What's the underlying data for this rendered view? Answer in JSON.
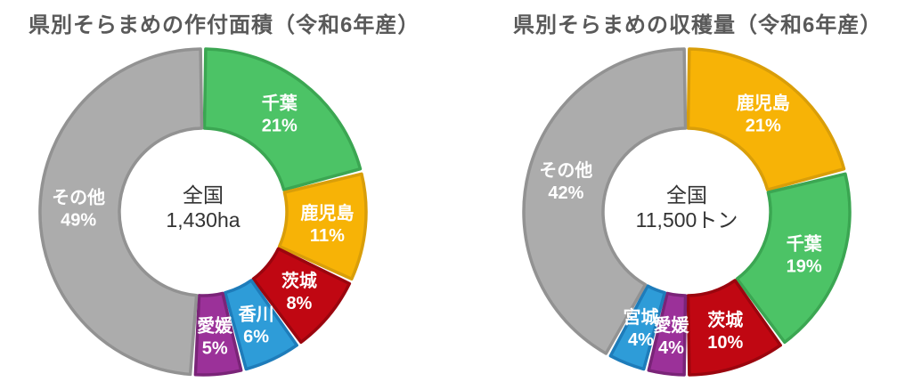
{
  "styles": {
    "background": "#FFFFFF",
    "title_color": "#595959",
    "center_text_color": "#333333",
    "slice_label_color": "#FFFFFF"
  },
  "chart_data": [
    {
      "type": "pie",
      "subtype": "donut",
      "title": "県別そらまめの作付面積（令和6年産）",
      "center_text": [
        "全国",
        "1,430ha"
      ],
      "unit": "%",
      "start_angle_deg": 0,
      "direction": "clockwise",
      "categories": [
        "千葉",
        "鹿児島",
        "茨城",
        "香川",
        "愛媛",
        "その他"
      ],
      "values": [
        21,
        11,
        8,
        6,
        5,
        49
      ],
      "slices": [
        {
          "label": "千葉",
          "slug": "chiba",
          "value": 21,
          "display": "21%",
          "fill": "#4CC366",
          "border": "#3BA652"
        },
        {
          "label": "鹿児島",
          "slug": "kagoshima",
          "value": 11,
          "display": "11%",
          "fill": "#F7B306",
          "border": "#D99E09"
        },
        {
          "label": "茨城",
          "slug": "ibaraki",
          "value": 8,
          "display": "8%",
          "fill": "#C00712",
          "border": "#9B050E"
        },
        {
          "label": "香川",
          "slug": "kagawa",
          "value": 6,
          "display": "6%",
          "fill": "#2E9CD8",
          "border": "#1E7CBA"
        },
        {
          "label": "愛媛",
          "slug": "ehime",
          "value": 5,
          "display": "5%",
          "fill": "#9B3199",
          "border": "#7A2478"
        },
        {
          "label": "その他",
          "slug": "other",
          "value": 49,
          "display": "49%",
          "fill": "#ACACAC",
          "border": "#929292"
        }
      ]
    },
    {
      "type": "pie",
      "subtype": "donut",
      "title": "県別そらまめの収穫量（令和6年産）",
      "center_text": [
        "全国",
        "11,500トン"
      ],
      "unit": "%",
      "start_angle_deg": 0,
      "direction": "clockwise",
      "categories": [
        "鹿児島",
        "千葉",
        "茨城",
        "愛媛",
        "宮城",
        "その他"
      ],
      "values": [
        21,
        19,
        10,
        4,
        4,
        42
      ],
      "slices": [
        {
          "label": "鹿児島",
          "slug": "kagoshima",
          "value": 21,
          "display": "21%",
          "fill": "#F7B306",
          "border": "#D99E09"
        },
        {
          "label": "千葉",
          "slug": "chiba",
          "value": 19,
          "display": "19%",
          "fill": "#4CC366",
          "border": "#3BA652"
        },
        {
          "label": "茨城",
          "slug": "ibaraki",
          "value": 10,
          "display": "10%",
          "fill": "#C00712",
          "border": "#9B050E"
        },
        {
          "label": "愛媛",
          "slug": "ehime",
          "value": 4,
          "display": "4%",
          "fill": "#9B3199",
          "border": "#7A2478"
        },
        {
          "label": "宮城",
          "slug": "miyagi",
          "value": 4,
          "display": "4%",
          "fill": "#2E9CD8",
          "border": "#1E7CBA"
        },
        {
          "label": "その他",
          "slug": "other",
          "value": 42,
          "display": "42%",
          "fill": "#ACACAC",
          "border": "#929292"
        }
      ]
    }
  ]
}
